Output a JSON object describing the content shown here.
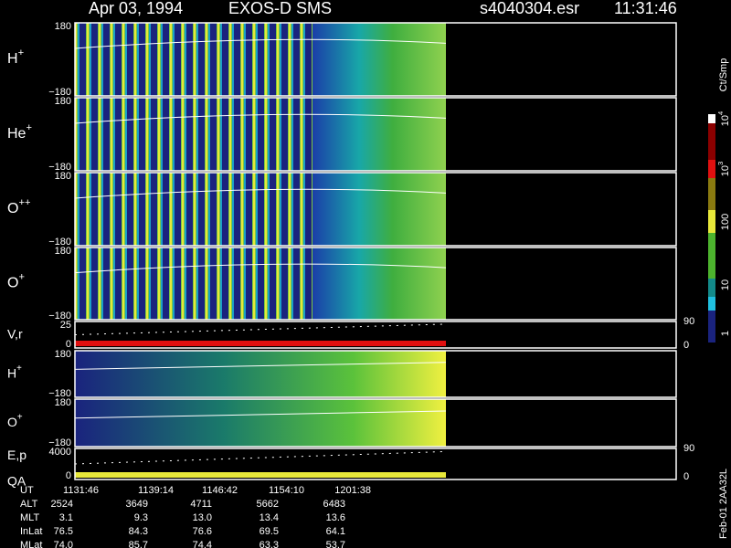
{
  "header": {
    "date": "Apr 03, 1994",
    "instrument": "EXOS-D SMS",
    "file": "s4040304.esr",
    "time": "11:31:46"
  },
  "panels": [
    {
      "label": {
        "base": "H",
        "sup": "+"
      },
      "ticks": [
        "180",
        "−180"
      ]
    },
    {
      "label": {
        "base": "He",
        "sup": "+"
      },
      "ticks": [
        "180",
        "−180"
      ]
    },
    {
      "label": {
        "base": "O",
        "sup": "++"
      },
      "ticks": [
        "180",
        "−180"
      ]
    },
    {
      "label": {
        "base": "O",
        "sup": "+"
      },
      "ticks": [
        "180",
        "−180"
      ]
    },
    {
      "label": {
        "base": "V,r",
        "sup": ""
      },
      "ticks": [
        "25",
        "0"
      ],
      "right_ticks": [
        "90",
        "0"
      ]
    },
    {
      "label": {
        "base": "H",
        "sup": "+"
      },
      "ticks": [
        "180",
        "−180"
      ]
    },
    {
      "label": {
        "base": "O",
        "sup": "+"
      },
      "ticks": [
        "180",
        "−180"
      ]
    },
    {
      "label": {
        "base": "E,p",
        "sup": ""
      },
      "label2": "QA",
      "ticks": [
        "4000",
        "0"
      ],
      "right_ticks": [
        "90",
        "0"
      ]
    }
  ],
  "colorbar": {
    "title": "Ct/Smp",
    "ticks": [
      {
        "base": "10",
        "sup": "4"
      },
      {
        "base": "10",
        "sup": "3"
      },
      {
        "base": "100",
        "sup": ""
      },
      {
        "base": "10",
        "sup": ""
      },
      {
        "base": "1",
        "sup": ""
      }
    ]
  },
  "table": {
    "rows": [
      [
        "UT",
        "1131:46",
        "1139:14",
        "1146:42",
        "1154:10",
        "1201:38"
      ],
      [
        "ALT",
        "2524",
        "3649",
        "4711",
        "5662",
        "6483"
      ],
      [
        "MLT",
        "3.1",
        "9.3",
        "13.0",
        "13.4",
        "13.6"
      ],
      [
        "InLat",
        "76.5",
        "84.3",
        "76.6",
        "69.5",
        "64.1"
      ],
      [
        "MLat",
        "74.0",
        "85.7",
        "74.4",
        "63.3",
        "53.7"
      ]
    ]
  },
  "footer": "Feb-01 2AA32L"
}
